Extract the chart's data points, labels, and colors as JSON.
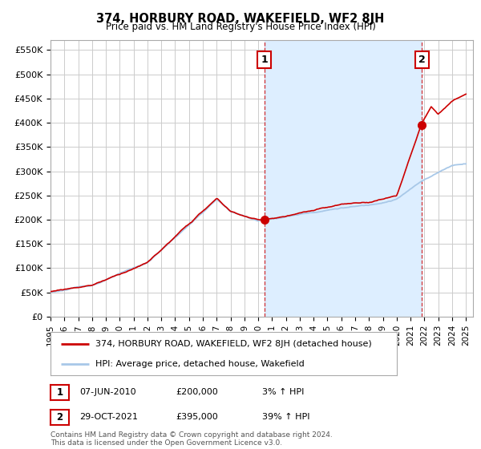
{
  "title": "374, HORBURY ROAD, WAKEFIELD, WF2 8JH",
  "subtitle": "Price paid vs. HM Land Registry's House Price Index (HPI)",
  "ylabel_ticks": [
    "£0",
    "£50K",
    "£100K",
    "£150K",
    "£200K",
    "£250K",
    "£300K",
    "£350K",
    "£400K",
    "£450K",
    "£500K",
    "£550K"
  ],
  "ytick_values": [
    0,
    50000,
    100000,
    150000,
    200000,
    250000,
    300000,
    350000,
    400000,
    450000,
    500000,
    550000
  ],
  "ylim": [
    0,
    570000
  ],
  "hpi_color": "#a8c8e8",
  "price_color": "#cc0000",
  "shade_color": "#ddeeff",
  "year1": 2010.44,
  "year2": 2021.83,
  "value1": 200000,
  "value2": 395000,
  "annotation1": "1",
  "annotation2": "2",
  "legend_label1": "374, HORBURY ROAD, WAKEFIELD, WF2 8JH (detached house)",
  "legend_label2": "HPI: Average price, detached house, Wakefield",
  "table_row1": [
    "1",
    "07-JUN-2010",
    "£200,000",
    "3% ↑ HPI"
  ],
  "table_row2": [
    "2",
    "29-OCT-2021",
    "£395,000",
    "39% ↑ HPI"
  ],
  "footnote": "Contains HM Land Registry data © Crown copyright and database right 2024.\nThis data is licensed under the Open Government Licence v3.0.",
  "background_color": "#ffffff",
  "grid_color": "#cccccc"
}
